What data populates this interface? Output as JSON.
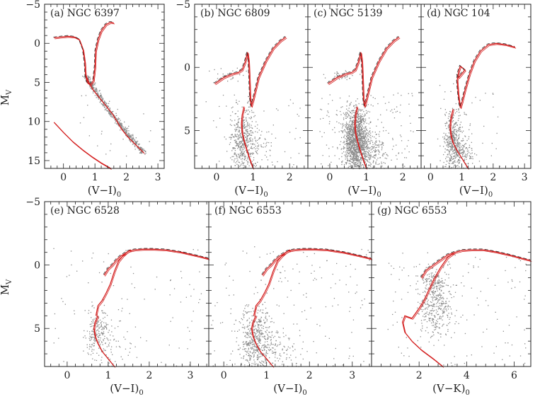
{
  "figure": {
    "ylabel_main": "M",
    "ylabel_sub": "V"
  },
  "colors": {
    "isochrone": "#d42020",
    "ridgeline": "#222222",
    "stars": "#8a8a8a"
  },
  "chart_data": [
    {
      "id": "a",
      "type": "scatter",
      "title": "(a) NGC 6397",
      "xlabel": "(V−I)",
      "xlabel_sub": "0",
      "ylabel": "M_V",
      "xlim": [
        -0.6,
        3.2
      ],
      "ylim": [
        16,
        -5
      ],
      "xticks": [
        0,
        1,
        2,
        3
      ],
      "yticks": [
        -5,
        0,
        5,
        10,
        15
      ],
      "series": [
        {
          "name": "isochrone",
          "kind": "line",
          "x": [
            -0.3,
            -0.1,
            0.15,
            0.35,
            0.5,
            0.62,
            0.68,
            0.7,
            0.75,
            0.85,
            0.95,
            1.0,
            1.02,
            1.1,
            1.2,
            1.35,
            1.5,
            1.6
          ],
          "y": [
            -0.7,
            -0.8,
            -0.9,
            -0.8,
            -0.5,
            0.8,
            2.5,
            4.0,
            5.0,
            5.3,
            4.8,
            3.0,
            1.0,
            -0.5,
            -1.6,
            -2.4,
            -2.7,
            -2.6
          ]
        },
        {
          "name": "isochrone",
          "kind": "line",
          "x": [
            0.7,
            0.8,
            0.95,
            1.15,
            1.35,
            1.55,
            1.7,
            1.85,
            2.05,
            2.3,
            2.55
          ],
          "y": [
            4.0,
            5.0,
            6.0,
            7.0,
            8.0,
            9.0,
            10.0,
            11.0,
            12.0,
            13.0,
            14.0
          ]
        },
        {
          "name": "white dwarf sequence",
          "kind": "line",
          "x": [
            -0.3,
            0.0,
            0.3,
            0.6,
            0.9,
            1.2,
            1.5
          ],
          "y": [
            10.1,
            11.4,
            12.6,
            13.6,
            14.5,
            15.3,
            16.0
          ]
        }
      ]
    },
    {
      "id": "b",
      "type": "scatter",
      "title": "(b) NGC 6809",
      "xlabel": "(V−I)",
      "xlabel_sub": "0",
      "ylabel": "M_V",
      "xlim": [
        -0.6,
        2.5
      ],
      "ylim": [
        8,
        -5
      ],
      "xticks": [
        0,
        1,
        2
      ],
      "yticks": [
        -5,
        0,
        5
      ],
      "series": [
        {
          "name": "isochrone",
          "kind": "line",
          "x": [
            -0.05,
            0.2,
            0.45,
            0.6,
            0.7,
            0.78,
            0.85,
            0.88,
            0.9,
            0.92,
            0.95,
            1.0,
            1.15,
            1.35,
            1.55,
            1.75,
            1.9
          ],
          "y": [
            1.3,
            0.8,
            0.5,
            0.4,
            0.2,
            -0.4,
            -1.2,
            -0.5,
            0.8,
            2.5,
            3.1,
            2.6,
            0.8,
            -0.5,
            -1.5,
            -2.1,
            -2.4
          ]
        },
        {
          "name": "isochrone",
          "kind": "line",
          "x": [
            0.75,
            0.7,
            0.68,
            0.7,
            0.75,
            0.82,
            0.9,
            1.0
          ],
          "y": [
            3.1,
            3.8,
            4.5,
            5.2,
            5.8,
            6.5,
            7.2,
            8.0
          ]
        }
      ]
    },
    {
      "id": "c",
      "type": "scatter",
      "title": "(c) NGC 5139",
      "xlabel": "(V−I)",
      "xlabel_sub": "0",
      "ylabel": "M_V",
      "xlim": [
        -0.6,
        2.5
      ],
      "ylim": [
        8,
        -5
      ],
      "xticks": [
        0,
        1,
        2
      ],
      "yticks": [
        -5,
        0,
        5
      ],
      "series": [
        {
          "name": "isochrone",
          "kind": "line",
          "x": [
            -0.05,
            0.2,
            0.45,
            0.6,
            0.7,
            0.78,
            0.85,
            0.88,
            0.9,
            0.92,
            0.95,
            1.0,
            1.15,
            1.35,
            1.55,
            1.75,
            1.9
          ],
          "y": [
            1.3,
            0.8,
            0.5,
            0.4,
            0.2,
            -0.4,
            -1.2,
            -0.5,
            0.8,
            2.5,
            3.1,
            2.6,
            0.8,
            -0.5,
            -1.5,
            -2.1,
            -2.4
          ]
        },
        {
          "name": "isochrone",
          "kind": "line",
          "x": [
            0.75,
            0.7,
            0.68,
            0.7,
            0.75,
            0.82,
            0.9,
            1.0
          ],
          "y": [
            3.1,
            3.8,
            4.5,
            5.2,
            5.8,
            6.5,
            7.2,
            8.0
          ]
        }
      ]
    },
    {
      "id": "d",
      "type": "scatter",
      "title": "(d) NGC 104",
      "xlabel": "(V−I)",
      "xlabel_sub": "0",
      "ylabel": "M_V",
      "xlim": [
        -0.3,
        3.2
      ],
      "ylim": [
        8,
        -5
      ],
      "xticks": [
        0,
        1,
        2,
        3
      ],
      "yticks": [
        -5,
        0,
        5
      ],
      "series": [
        {
          "name": "isochrone",
          "kind": "line",
          "x": [
            0.85,
            0.9,
            1.0,
            1.1,
            0.95,
            0.9,
            0.85,
            0.88,
            0.92,
            0.95,
            1.0,
            1.1,
            1.25,
            1.4,
            1.6,
            1.85,
            2.1,
            2.4,
            2.7
          ],
          "y": [
            0.6,
            0.8,
            0.5,
            0.2,
            -0.1,
            0.3,
            1.0,
            2.0,
            2.8,
            3.2,
            2.8,
            1.8,
            0.5,
            -0.5,
            -1.3,
            -1.8,
            -1.9,
            -1.8,
            -1.6
          ]
        },
        {
          "name": "isochrone",
          "kind": "line",
          "x": [
            0.72,
            0.65,
            0.62,
            0.65,
            0.72,
            0.85,
            1.0,
            1.2
          ],
          "y": [
            3.3,
            4.0,
            4.7,
            5.4,
            6.0,
            6.6,
            7.2,
            8.0
          ]
        }
      ]
    },
    {
      "id": "e",
      "type": "scatter",
      "title": "(e) NGC 6528",
      "xlabel": "(V−I)",
      "xlabel_sub": "0",
      "ylabel": "M_V",
      "xlim": [
        -0.55,
        3.45
      ],
      "ylim": [
        8,
        -5
      ],
      "xticks": [
        0,
        1,
        2,
        3
      ],
      "yticks": [
        -5,
        0,
        5
      ],
      "series": [
        {
          "name": "isochrone",
          "kind": "line",
          "x": [
            0.9,
            1.0,
            1.1,
            1.2,
            1.3,
            1.4,
            1.5,
            1.65,
            1.85,
            2.1,
            2.4,
            2.8,
            3.2,
            3.45
          ],
          "y": [
            0.8,
            0.3,
            0.0,
            -0.4,
            -0.7,
            -0.9,
            -1.1,
            -1.2,
            -1.25,
            -1.25,
            -1.2,
            -1.0,
            -0.7,
            -0.5
          ]
        },
        {
          "name": "isochrone",
          "kind": "line",
          "x": [
            0.7,
            0.75,
            0.85,
            0.95,
            1.05,
            1.15,
            1.25,
            1.35,
            1.45,
            1.55
          ],
          "y": [
            4.0,
            3.2,
            2.8,
            2.2,
            1.5,
            0.5,
            -0.3,
            -0.7,
            -1.0,
            -1.2
          ]
        },
        {
          "name": "isochrone",
          "kind": "line",
          "x": [
            0.75,
            0.68,
            0.65,
            0.68,
            0.75,
            0.85,
            1.0,
            1.15
          ],
          "y": [
            4.0,
            4.5,
            5.0,
            5.6,
            6.2,
            6.8,
            7.4,
            8.0
          ]
        }
      ]
    },
    {
      "id": "f",
      "type": "scatter",
      "title": "(f) NGC 6553",
      "xlabel": "(V−I)",
      "xlabel_sub": "0",
      "ylabel": "M_V",
      "xlim": [
        -0.35,
        3.45
      ],
      "ylim": [
        8,
        -5
      ],
      "xticks": [
        0,
        1,
        2,
        3
      ],
      "yticks": [
        -5,
        0,
        5
      ],
      "series": [
        {
          "name": "isochrone",
          "kind": "line",
          "x": [
            0.9,
            1.0,
            1.1,
            1.2,
            1.3,
            1.4,
            1.5,
            1.65,
            1.85,
            2.1,
            2.4,
            2.8,
            3.2,
            3.45
          ],
          "y": [
            0.8,
            0.3,
            0.0,
            -0.4,
            -0.7,
            -0.9,
            -1.1,
            -1.2,
            -1.25,
            -1.25,
            -1.2,
            -1.0,
            -0.7,
            -0.5
          ]
        },
        {
          "name": "isochrone",
          "kind": "line",
          "x": [
            0.7,
            0.75,
            0.85,
            0.95,
            1.05,
            1.15,
            1.25,
            1.35,
            1.45,
            1.55
          ],
          "y": [
            4.0,
            3.2,
            2.8,
            2.2,
            1.5,
            0.5,
            -0.3,
            -0.7,
            -1.0,
            -1.2
          ]
        },
        {
          "name": "isochrone",
          "kind": "line",
          "x": [
            0.75,
            0.68,
            0.65,
            0.68,
            0.75,
            0.85,
            1.0,
            1.15
          ],
          "y": [
            4.0,
            4.5,
            5.0,
            5.6,
            6.2,
            6.8,
            7.4,
            8.0
          ]
        }
      ]
    },
    {
      "id": "g",
      "type": "scatter",
      "title": "(g) NGC 6553",
      "xlabel": "(V−K)",
      "xlabel_sub": "0",
      "ylabel": "M_V",
      "xlim": [
        0.0,
        6.7
      ],
      "ylim": [
        8,
        -5
      ],
      "xticks": [
        2,
        4,
        6
      ],
      "yticks": [
        -5,
        0,
        5
      ],
      "series": [
        {
          "name": "isochrone",
          "kind": "line",
          "x": [
            2.1,
            2.3,
            2.6,
            2.9,
            3.2,
            3.5,
            3.8,
            4.2,
            4.7,
            5.2,
            5.8,
            6.4,
            6.7
          ],
          "y": [
            1.0,
            0.4,
            0.0,
            -0.4,
            -0.8,
            -1.0,
            -1.15,
            -1.2,
            -1.2,
            -1.05,
            -0.8,
            -0.5,
            -0.35
          ]
        },
        {
          "name": "isochrone",
          "kind": "line",
          "x": [
            1.7,
            2.0,
            2.2,
            2.4,
            2.6,
            2.9,
            3.2,
            3.5
          ],
          "y": [
            4.2,
            3.4,
            2.8,
            2.0,
            1.2,
            0.2,
            -0.6,
            -1.0
          ]
        },
        {
          "name": "isochrone",
          "kind": "line",
          "x": [
            1.7,
            1.4,
            1.3,
            1.4,
            1.7,
            2.1,
            2.6,
            3.0
          ],
          "y": [
            4.2,
            4.0,
            4.5,
            5.3,
            6.0,
            6.7,
            7.4,
            8.0
          ]
        }
      ]
    }
  ]
}
